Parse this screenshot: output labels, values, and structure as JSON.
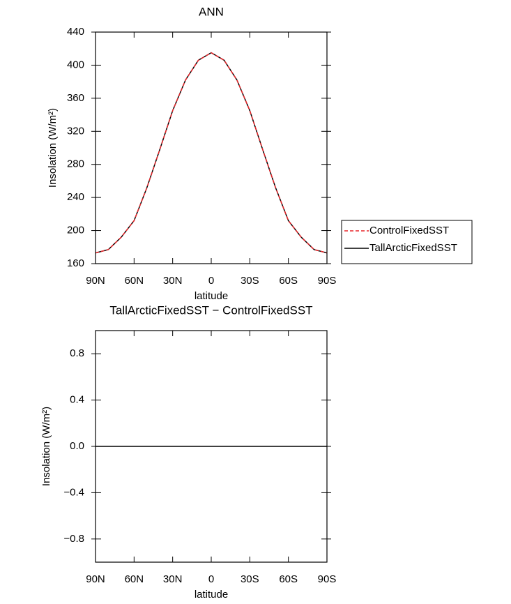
{
  "chart_data": [
    {
      "type": "line",
      "title": "ANN",
      "x_label": "latitude",
      "y_label": "Insolation (W/m²)",
      "x": [
        90,
        80,
        70,
        60,
        50,
        40,
        30,
        20,
        10,
        0,
        -10,
        -20,
        -30,
        -40,
        -50,
        -60,
        -70,
        -80,
        -90
      ],
      "series": [
        {
          "name": "ControlFixedSST",
          "color": "#e8262a",
          "line_style": "dashed",
          "values": [
            173,
            177,
            192,
            212,
            252,
            298,
            345,
            382,
            406,
            415,
            406,
            382,
            345,
            298,
            252,
            212,
            192,
            177,
            173
          ]
        },
        {
          "name": "TallArcticFixedSST",
          "color": "#000000",
          "line_style": "solid",
          "values": [
            173,
            177,
            192,
            212,
            252,
            298,
            345,
            382,
            406,
            415,
            406,
            382,
            345,
            298,
            252,
            212,
            192,
            177,
            173
          ]
        }
      ],
      "xlim": [
        90,
        -90
      ],
      "xticks": [
        {
          "value": 90,
          "label": "90N"
        },
        {
          "value": 60,
          "label": "60N"
        },
        {
          "value": 30,
          "label": "30N"
        },
        0,
        {
          "value": -30,
          "label": "30S"
        },
        {
          "value": -60,
          "label": "60S"
        },
        {
          "value": -90,
          "label": "90S"
        }
      ],
      "ylim": [
        160,
        440
      ],
      "yticks": [
        160,
        200,
        240,
        280,
        320,
        360,
        400,
        440
      ],
      "legend": "right"
    },
    {
      "type": "line",
      "title": "TallArcticFixedSST − ControlFixedSST",
      "x_label": "latitude",
      "y_label": "Insolation (W/m²)",
      "x": [
        90,
        80,
        70,
        60,
        50,
        40,
        30,
        20,
        10,
        0,
        -10,
        -20,
        -30,
        -40,
        -50,
        -60,
        -70,
        -80,
        -90
      ],
      "series": [
        {
          "color": "#000000",
          "line_style": "solid",
          "values": [
            0,
            0,
            0,
            0,
            0,
            0,
            0,
            0,
            0,
            0,
            0,
            0,
            0,
            0,
            0,
            0,
            0,
            0,
            0
          ]
        }
      ],
      "xlim": [
        90,
        -90
      ],
      "xticks": [
        {
          "value": 90,
          "label": "90N"
        },
        {
          "value": 60,
          "label": "60N"
        },
        {
          "value": 30,
          "label": "30N"
        },
        0,
        {
          "value": -30,
          "label": "30S"
        },
        {
          "value": -60,
          "label": "60S"
        },
        {
          "value": -90,
          "label": "90S"
        }
      ],
      "ylim": [
        -1,
        1
      ],
      "yticks": [
        {
          "value": -0.8,
          "label": "−0.8"
        },
        {
          "value": -0.4,
          "label": "−0.4"
        },
        {
          "value": 0,
          "label": "0.0"
        },
        0.4,
        0.8
      ]
    }
  ]
}
